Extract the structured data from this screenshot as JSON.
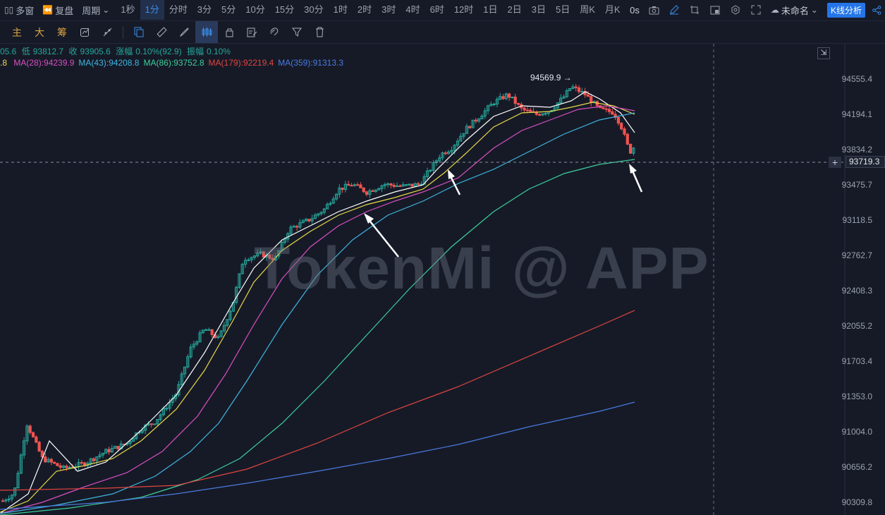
{
  "topbar": {
    "multi_window": "多窗",
    "replay": "复盘",
    "period_label": "周期",
    "periods": [
      "1秒",
      "1分",
      "分时",
      "3分",
      "5分",
      "10分",
      "15分",
      "30分",
      "1时",
      "2时",
      "3时",
      "4时",
      "6时",
      "12时",
      "1日",
      "2日",
      "3日",
      "5日",
      "周K",
      "月K"
    ],
    "active_period": "1分",
    "countdown": "0s",
    "layout_name": "未命名",
    "analysis_button": "K线分析"
  },
  "toolbar2": {
    "main": "主",
    "big": "大",
    "chips": "筹"
  },
  "info": {
    "open_partial": "05.6",
    "low_label": "低",
    "low": "93812.7",
    "close_label": "收",
    "close": "93905.6",
    "change_label": "涨幅",
    "change": "0.10%(92.9)",
    "amplitude_label": "振幅",
    "amplitude": "0.10%"
  },
  "ma": [
    {
      "label": "MA(28):94239.9",
      "color": "#d94fc1"
    },
    {
      "label": "MA(43):94208.8",
      "color": "#3fb6e0"
    },
    {
      "label": "MA(86):93752.8",
      "color": "#3ccf9c"
    },
    {
      "label": "MA(179):92219.4",
      "color": "#e0453f"
    },
    {
      "label": "MA(359):91313.3",
      "color": "#4a7be0"
    }
  ],
  "ma_first_partial": ".8",
  "ma_first_color": "#e8d84a",
  "axis": {
    "ticks": [
      "94555.4",
      "94194.1",
      "93834.2",
      "93475.7",
      "93118.5",
      "92762.7",
      "92408.3",
      "92055.2",
      "91703.4",
      "91353.0",
      "91004.0",
      "90656.2",
      "90309.8"
    ],
    "current_price": "93719.3"
  },
  "high_marker": "94569.9",
  "watermark": "TokenMi @ APP",
  "colors": {
    "up": "#26a69a",
    "down": "#ef5350",
    "background": "#161a27",
    "accent": "#2575e8"
  }
}
